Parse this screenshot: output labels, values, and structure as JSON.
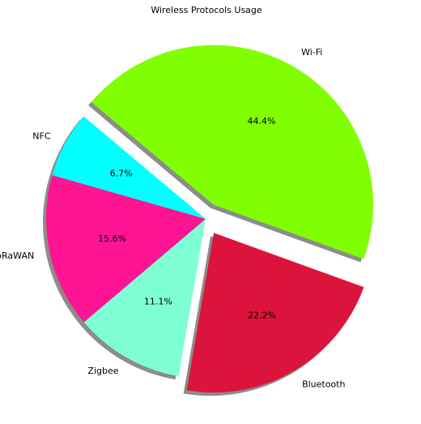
{
  "chart_data": {
    "type": "pie",
    "title": "Wireless Protocols Usage",
    "start_angle_deg": 140,
    "direction": "clockwise",
    "shadow": true,
    "slices": [
      {
        "label": "Wi-Fi",
        "value": 44.4,
        "pct_text": "44.4%",
        "color": "#7fff00",
        "explode": true
      },
      {
        "label": "Bluetooth",
        "value": 22.2,
        "pct_text": "22.2%",
        "color": "#dc143c",
        "explode": true
      },
      {
        "label": "Zigbee",
        "value": 11.1,
        "pct_text": "11.1%",
        "color": "#7fffd4",
        "explode": false
      },
      {
        "label": "LoRaWAN",
        "value": 15.6,
        "pct_text": "15.6%",
        "color": "#ff1493",
        "explode": false
      },
      {
        "label": "NFC",
        "value": 6.7,
        "pct_text": "6.7%",
        "color": "#00ffff",
        "explode": false
      }
    ]
  }
}
